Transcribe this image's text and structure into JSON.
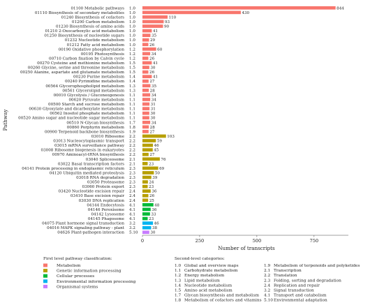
{
  "chart_data": {
    "type": "bar",
    "orientation": "horizontal",
    "xlabel": "Number of transcripts",
    "ylabel": "Pathway",
    "xlim": [
      0,
      900
    ],
    "xticks": [
      0,
      250,
      500,
      750
    ],
    "grid": false,
    "rows": [
      {
        "pathway": "01100 Metabolic pathways",
        "category": "1.0",
        "group": "Metabolism",
        "value": 844
      },
      {
        "pathway": "01110 Biosynthesis of secondary metabolites",
        "category": "1.0",
        "group": "Metabolism",
        "value": 430
      },
      {
        "pathway": "01240 Biosynthesis of cofactors",
        "category": "1.0",
        "group": "Metabolism",
        "value": 110
      },
      {
        "pathway": "01200 Carbon metabolism",
        "category": "1.0",
        "group": "Metabolism",
        "value": 93
      },
      {
        "pathway": "01230 Biosynthesis of amino acids",
        "category": "1.0",
        "group": "Metabolism",
        "value": 90
      },
      {
        "pathway": "01210 2-Oxocarboxylic acid metabolism",
        "category": "1.0",
        "group": "Metabolism",
        "value": 41
      },
      {
        "pathway": "01250 Biosynthesis of nucleotide sugars",
        "category": "1.0",
        "group": "Metabolism",
        "value": 35
      },
      {
        "pathway": "01232 Nucleotide metabolism",
        "category": "1.0",
        "group": "Metabolism",
        "value": 29
      },
      {
        "pathway": "01212 Fatty acid metabolism",
        "category": "1.0",
        "group": "Metabolism",
        "value": 26
      },
      {
        "pathway": "00190 Oxidative phosphorylation",
        "category": "1.2",
        "group": "Metabolism",
        "value": 60
      },
      {
        "pathway": "00195 Photosynthesis",
        "category": "1.2",
        "group": "Metabolism",
        "value": 34
      },
      {
        "pathway": "00710 Carbon fixation by Calvin cycle",
        "category": "1.2",
        "group": "Metabolism",
        "value": 26
      },
      {
        "pathway": "00270 Cysteine and methionine metabolism",
        "category": "1.5",
        "group": "Metabolism",
        "value": 41
      },
      {
        "pathway": "00260 Glycine, serine and threonine metabolism",
        "category": "1.5",
        "group": "Metabolism",
        "value": 30
      },
      {
        "pathway": "00250 Alanine, aspartate and glutamate metabolism",
        "category": "1.5",
        "group": "Metabolism",
        "value": 26
      },
      {
        "pathway": "00230 Purine metabolism",
        "category": "1.4",
        "group": "Metabolism",
        "value": 41
      },
      {
        "pathway": "00240 Pyrimidine metabolism",
        "category": "1.4",
        "group": "Metabolism",
        "value": 27
      },
      {
        "pathway": "00564 Glycerophospholipid metabolism",
        "category": "1.3",
        "group": "Metabolism",
        "value": 35
      },
      {
        "pathway": "00561 Glycerolipid metabolism",
        "category": "1.3",
        "group": "Metabolism",
        "value": 28
      },
      {
        "pathway": "00010 Glycolysis / Gluconeogenesis",
        "category": "1.1",
        "group": "Metabolism",
        "value": 34
      },
      {
        "pathway": "00620 Pyruvate metabolism",
        "category": "1.1",
        "group": "Metabolism",
        "value": 34
      },
      {
        "pathway": "00500 Starch and sucrose metabolism",
        "category": "1.1",
        "group": "Metabolism",
        "value": 31
      },
      {
        "pathway": "00630 Glyoxylate and dicarboxylate metabolism",
        "category": "1.1",
        "group": "Metabolism",
        "value": 31
      },
      {
        "pathway": "00562 Inositol phosphate metabolism",
        "category": "1.1",
        "group": "Metabolism",
        "value": 30
      },
      {
        "pathway": "00520 Amino sugar and nucleotide sugar metabolism",
        "category": "1.1",
        "group": "Metabolism",
        "value": 30
      },
      {
        "pathway": "00510 N-Glycan biosynthesis",
        "category": "1.7",
        "group": "Metabolism",
        "value": 34
      },
      {
        "pathway": "00860 Porphyrin metabolism",
        "category": "1.8",
        "group": "Metabolism",
        "value": 28
      },
      {
        "pathway": "00900 Terpenoid backbone biosynthesis",
        "category": "1.9",
        "group": "Metabolism",
        "value": 27
      },
      {
        "pathway": "03010 Ribosome",
        "category": "2.2",
        "group": "Genetic information processing",
        "value": 103
      },
      {
        "pathway": "03013 Nucleocytoplasmic transport",
        "category": "2.2",
        "group": "Genetic information processing",
        "value": 59
      },
      {
        "pathway": "03015 mRNA surveillance pathway",
        "category": "2.2",
        "group": "Genetic information processing",
        "value": 46
      },
      {
        "pathway": "03008 Ribosome biogenesis in eukaryotes",
        "category": "2.2",
        "group": "Genetic information processing",
        "value": 45
      },
      {
        "pathway": "00970 Aminoacyl-tRNA biosynthesis",
        "category": "2.2",
        "group": "Genetic information processing",
        "value": 27
      },
      {
        "pathway": "03040 Spliceosome",
        "category": "2.1",
        "group": "Genetic information processing",
        "value": 76
      },
      {
        "pathway": "03022 Basal transcription factors",
        "category": "2.1",
        "group": "Genetic information processing",
        "value": 23
      },
      {
        "pathway": "04141 Protein processing in endoplasmic reticulum",
        "category": "2.3",
        "group": "Genetic information processing",
        "value": 69
      },
      {
        "pathway": "04120 Ubiquitin mediated proteolysis",
        "category": "2.3",
        "group": "Genetic information processing",
        "value": 50
      },
      {
        "pathway": "03018 RNA degradation",
        "category": "2.3",
        "group": "Genetic information processing",
        "value": 39
      },
      {
        "pathway": "03050 Proteasome",
        "category": "2.3",
        "group": "Genetic information processing",
        "value": 24
      },
      {
        "pathway": "03060 Protein export",
        "category": "2.3",
        "group": "Genetic information processing",
        "value": 23
      },
      {
        "pathway": "03420 Nucleotide excision repair",
        "category": "2.4",
        "group": "Genetic information processing",
        "value": 36
      },
      {
        "pathway": "03410 Base excision repair",
        "category": "2.4",
        "group": "Genetic information processing",
        "value": 26
      },
      {
        "pathway": "03030 DNA replication",
        "category": "2.4",
        "group": "Genetic information processing",
        "value": 25
      },
      {
        "pathway": "04144 Endocytosis",
        "category": "4.1",
        "group": "Cellular processes",
        "value": 48
      },
      {
        "pathway": "04146 Peroxisome",
        "category": "4.1",
        "group": "Cellular processes",
        "value": 36
      },
      {
        "pathway": "04142 Lysosome",
        "category": "4.1",
        "group": "Cellular processes",
        "value": 33
      },
      {
        "pathway": "04145 Phagosome",
        "category": "4.1",
        "group": "Cellular processes",
        "value": 23
      },
      {
        "pathway": "04075 Plant hormone signal transduction",
        "category": "3.2",
        "group": "Environmental information processing",
        "value": 46
      },
      {
        "pathway": "04016 MAPK signaling pathway - plant",
        "category": "3.2",
        "group": "Environmental information processing",
        "value": 38
      },
      {
        "pathway": "04626 Plant-pathogen interaction",
        "category": "5.10",
        "group": "Organismal systems",
        "value": 30
      }
    ],
    "legend_first_level": {
      "title": "First level pathway classification:",
      "items": [
        {
          "name": "Metabolism",
          "color": "#F8766D"
        },
        {
          "name": "Genetic information processing",
          "color": "#B79F00"
        },
        {
          "name": "Cellular processes",
          "color": "#00BA38"
        },
        {
          "name": "Environmental information processing",
          "color": "#00B4F0"
        },
        {
          "name": "Organismal systems",
          "color": "#C77CFF"
        }
      ]
    },
    "legend_second_level": {
      "title": "Second-level categories:",
      "items": [
        {
          "code": "1.0",
          "name": "Global and overview maps"
        },
        {
          "code": "1.1",
          "name": "Carbohydrate metabolism"
        },
        {
          "code": "1.2",
          "name": "Energy metabolism"
        },
        {
          "code": "1.3",
          "name": "Lipid metabolism"
        },
        {
          "code": "1.4",
          "name": "Nucleotide metabolism"
        },
        {
          "code": "1.5",
          "name": "Amino acid metabolism"
        },
        {
          "code": "1.7",
          "name": "Glycan biosynthesis and metabolism"
        },
        {
          "code": "1.8",
          "name": "Metabolism of cofactors and vitamins"
        },
        {
          "code": "1.9",
          "name": "Metabolism of terpenoids and polyketides"
        },
        {
          "code": "2.1",
          "name": "Transcription"
        },
        {
          "code": "2.2",
          "name": "Translation"
        },
        {
          "code": "2.3",
          "name": "Folding, sorting and degradation"
        },
        {
          "code": "2.4",
          "name": "Replication and repair"
        },
        {
          "code": "3.2",
          "name": "Signal transduction"
        },
        {
          "code": "4.1",
          "name": "Transport and catabolism"
        },
        {
          "code": "5.10",
          "name": "Environmental adaptation"
        }
      ]
    }
  }
}
